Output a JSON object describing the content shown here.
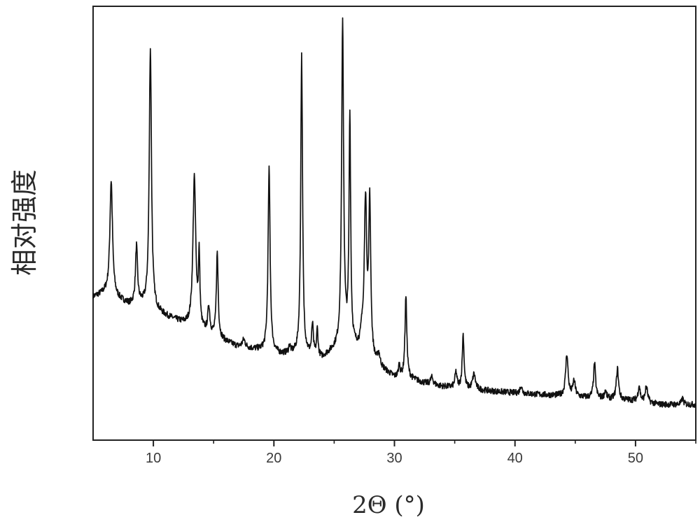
{
  "chart_data": {
    "type": "line",
    "title": "",
    "xlabel": "2Θ (°)",
    "ylabel": "相对强度",
    "xlim": [
      5,
      55
    ],
    "ylim": [
      0,
      100
    ],
    "x_ticks": [
      10,
      20,
      30,
      40,
      50
    ],
    "x_minor_ticks": [
      15,
      25,
      35,
      45,
      55
    ],
    "y_ticks_shown": false,
    "grid": false,
    "legend": "none",
    "line_color": "#111111",
    "baseline": [
      [
        5.0,
        32
      ],
      [
        6.0,
        33
      ],
      [
        8.0,
        30
      ],
      [
        9.0,
        30
      ],
      [
        11.0,
        27
      ],
      [
        12.5,
        25
      ],
      [
        14.0,
        23
      ],
      [
        15.5,
        21
      ],
      [
        17.0,
        19
      ],
      [
        19.0,
        18
      ],
      [
        20.5,
        17
      ],
      [
        22.0,
        17
      ],
      [
        24.0,
        16
      ],
      [
        25.0,
        18
      ],
      [
        26.0,
        19
      ],
      [
        27.0,
        18
      ],
      [
        28.0,
        15
      ],
      [
        29.0,
        13
      ],
      [
        30.0,
        11
      ],
      [
        31.0,
        11
      ],
      [
        33.0,
        9
      ],
      [
        36.0,
        8
      ],
      [
        40.0,
        7
      ],
      [
        45.0,
        6
      ],
      [
        50.0,
        5
      ],
      [
        52.0,
        4
      ],
      [
        55.0,
        4
      ]
    ],
    "peaks": [
      [
        6.5,
        30,
        0.13
      ],
      [
        8.6,
        15,
        0.1
      ],
      [
        9.75,
        68,
        0.11
      ],
      [
        13.4,
        39,
        0.14
      ],
      [
        13.8,
        18,
        0.07
      ],
      [
        14.6,
        7,
        0.1
      ],
      [
        15.3,
        22,
        0.09
      ],
      [
        17.5,
        2,
        0.15
      ],
      [
        19.6,
        48,
        0.1
      ],
      [
        21.3,
        2,
        0.08
      ],
      [
        22.3,
        78,
        0.09
      ],
      [
        23.2,
        8,
        0.08
      ],
      [
        23.6,
        7,
        0.07
      ],
      [
        25.7,
        84,
        0.1
      ],
      [
        26.3,
        60,
        0.08
      ],
      [
        27.3,
        4,
        0.1
      ],
      [
        27.6,
        40,
        0.12
      ],
      [
        27.95,
        40,
        0.1
      ],
      [
        28.7,
        3,
        0.12
      ],
      [
        30.4,
        3,
        0.08
      ],
      [
        30.95,
        21,
        0.09
      ],
      [
        33.1,
        2,
        0.15
      ],
      [
        35.1,
        4,
        0.1
      ],
      [
        35.7,
        14,
        0.09
      ],
      [
        36.6,
        4,
        0.14
      ],
      [
        40.5,
        2,
        0.1
      ],
      [
        44.3,
        11,
        0.12
      ],
      [
        44.9,
        4,
        0.12
      ],
      [
        46.6,
        9,
        0.1
      ],
      [
        47.5,
        2,
        0.1
      ],
      [
        48.5,
        8,
        0.11
      ],
      [
        50.3,
        4,
        0.1
      ],
      [
        50.9,
        4,
        0.12
      ],
      [
        53.9,
        1.5,
        0.1
      ]
    ]
  }
}
